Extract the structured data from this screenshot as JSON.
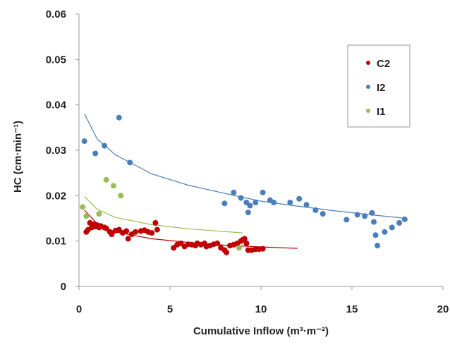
{
  "chart_data": {
    "type": "scatter",
    "xlabel": "Cumulative Inflow (m³·m⁻²)",
    "ylabel": "HC (cm·min⁻¹)",
    "xlim": [
      0,
      20
    ],
    "ylim": [
      0,
      0.06
    ],
    "x_ticks": [
      "0",
      "5",
      "10",
      "15",
      "20"
    ],
    "y_ticks": [
      "0",
      "0.01",
      "0.02",
      "0.03",
      "0.04",
      "0.05",
      "0.06"
    ],
    "grid": false,
    "legend_position": "top-right",
    "series": [
      {
        "name": "C2",
        "color": "#c00000",
        "points": [
          [
            0.4,
            0.012
          ],
          [
            0.5,
            0.0125
          ],
          [
            0.6,
            0.014
          ],
          [
            0.7,
            0.013
          ],
          [
            0.8,
            0.0137
          ],
          [
            0.9,
            0.0132
          ],
          [
            1.0,
            0.0135
          ],
          [
            1.1,
            0.013
          ],
          [
            1.2,
            0.0133
          ],
          [
            1.4,
            0.013
          ],
          [
            1.5,
            0.0128
          ],
          [
            1.7,
            0.012
          ],
          [
            1.8,
            0.0115
          ],
          [
            2.0,
            0.0123
          ],
          [
            2.2,
            0.0125
          ],
          [
            2.4,
            0.0118
          ],
          [
            2.6,
            0.0122
          ],
          [
            2.7,
            0.0105
          ],
          [
            2.9,
            0.0115
          ],
          [
            3.1,
            0.012
          ],
          [
            3.4,
            0.0122
          ],
          [
            3.6,
            0.0124
          ],
          [
            3.8,
            0.012
          ],
          [
            4.0,
            0.0118
          ],
          [
            4.2,
            0.014
          ],
          [
            4.3,
            0.0125
          ],
          [
            5.2,
            0.0085
          ],
          [
            5.4,
            0.0092
          ],
          [
            5.6,
            0.0095
          ],
          [
            5.8,
            0.0088
          ],
          [
            6.0,
            0.0093
          ],
          [
            6.2,
            0.0092
          ],
          [
            6.4,
            0.009
          ],
          [
            6.5,
            0.0095
          ],
          [
            6.7,
            0.0092
          ],
          [
            6.9,
            0.0095
          ],
          [
            7.0,
            0.0088
          ],
          [
            7.2,
            0.009
          ],
          [
            7.4,
            0.0093
          ],
          [
            7.6,
            0.0095
          ],
          [
            7.8,
            0.0085
          ],
          [
            8.0,
            0.008
          ],
          [
            8.1,
            0.0075
          ],
          [
            8.3,
            0.009
          ],
          [
            8.5,
            0.0092
          ],
          [
            8.7,
            0.0095
          ],
          [
            8.9,
            0.01
          ],
          [
            9.0,
            0.0103
          ],
          [
            9.1,
            0.0105
          ],
          [
            9.2,
            0.0095
          ],
          [
            9.3,
            0.008
          ],
          [
            9.5,
            0.008
          ],
          [
            9.7,
            0.0082
          ],
          [
            9.9,
            0.0082
          ],
          [
            10.1,
            0.0083
          ]
        ],
        "trend": [
          [
            0.3,
            0.0168
          ],
          [
            1,
            0.0138
          ],
          [
            2,
            0.012
          ],
          [
            4,
            0.0105
          ],
          [
            6,
            0.0097
          ],
          [
            8,
            0.0091
          ],
          [
            10,
            0.0087
          ],
          [
            12,
            0.0084
          ]
        ]
      },
      {
        "name": "I2",
        "color": "#4a7ebb",
        "points": [
          [
            0.3,
            0.032
          ],
          [
            0.9,
            0.0293
          ],
          [
            1.4,
            0.031
          ],
          [
            2.2,
            0.0372
          ],
          [
            2.8,
            0.0273
          ],
          [
            8.0,
            0.0183
          ],
          [
            8.5,
            0.0207
          ],
          [
            8.9,
            0.0195
          ],
          [
            9.2,
            0.0185
          ],
          [
            9.3,
            0.0163
          ],
          [
            9.4,
            0.0178
          ],
          [
            9.7,
            0.0185
          ],
          [
            10.1,
            0.0207
          ],
          [
            10.5,
            0.019
          ],
          [
            10.7,
            0.0185
          ],
          [
            11.6,
            0.0185
          ],
          [
            12.1,
            0.0193
          ],
          [
            12.5,
            0.018
          ],
          [
            13.0,
            0.0168
          ],
          [
            13.4,
            0.016
          ],
          [
            14.7,
            0.0147
          ],
          [
            15.3,
            0.0158
          ],
          [
            15.7,
            0.0155
          ],
          [
            16.1,
            0.0162
          ],
          [
            16.2,
            0.0142
          ],
          [
            16.3,
            0.0113
          ],
          [
            16.4,
            0.009
          ],
          [
            16.8,
            0.012
          ],
          [
            17.2,
            0.013
          ],
          [
            17.6,
            0.014
          ],
          [
            17.9,
            0.0148
          ]
        ],
        "trend": [
          [
            0.3,
            0.038
          ],
          [
            1,
            0.0325
          ],
          [
            2,
            0.029
          ],
          [
            4,
            0.0248
          ],
          [
            6,
            0.0223
          ],
          [
            8,
            0.0205
          ],
          [
            10,
            0.0188
          ],
          [
            12,
            0.0177
          ],
          [
            14,
            0.0167
          ],
          [
            16,
            0.0158
          ],
          [
            18,
            0.015
          ]
        ]
      },
      {
        "name": "I1",
        "color": "#9bbb59",
        "points": [
          [
            0.2,
            0.0175
          ],
          [
            0.4,
            0.0155
          ],
          [
            1.1,
            0.016
          ],
          [
            1.5,
            0.0235
          ],
          [
            1.9,
            0.0222
          ],
          [
            2.3,
            0.02
          ],
          [
            8.8,
            0.0085
          ]
        ],
        "trend": [
          [
            0.3,
            0.0198
          ],
          [
            1,
            0.017
          ],
          [
            2,
            0.0152
          ],
          [
            4,
            0.0136
          ],
          [
            6,
            0.0127
          ],
          [
            9,
            0.0118
          ]
        ]
      }
    ]
  }
}
